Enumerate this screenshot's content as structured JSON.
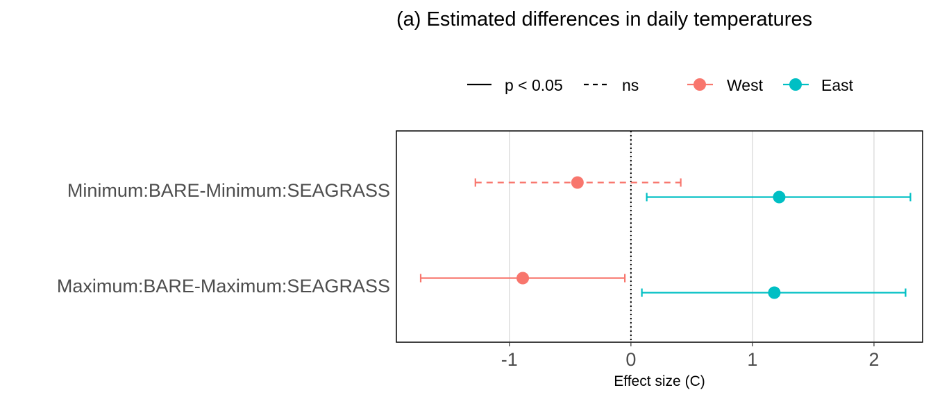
{
  "chart_data": {
    "type": "forest-plot",
    "title": "(a) Estimated differences in daily temperatures",
    "xlabel": "Effect size (C)",
    "ylabel": "",
    "xlim": [
      -1.93,
      2.4
    ],
    "x_ticks": [
      -1,
      0,
      1,
      2
    ],
    "x_tick_labels": [
      "-1",
      "0",
      "1",
      "2"
    ],
    "reference_line": {
      "x": 0,
      "style": "dotted"
    },
    "grid": "vertical major gridlines",
    "legend_position": "top",
    "legend": {
      "linetype": [
        {
          "label": "p < 0.05",
          "style": "solid"
        },
        {
          "label": "ns",
          "style": "dashed"
        }
      ],
      "color": [
        {
          "label": "West",
          "color": "#F8766D"
        },
        {
          "label": "East",
          "color": "#00BFC4"
        }
      ]
    },
    "categories": [
      "Minimum:BARE-Minimum:SEAGRASS",
      "Maximum:BARE-Maximum:SEAGRASS"
    ],
    "series": [
      {
        "name": "West",
        "color": "#F8766D",
        "points": [
          {
            "category": "Minimum:BARE-Minimum:SEAGRASS",
            "estimate": -0.44,
            "lower": -1.28,
            "upper": 0.41,
            "significance": "ns"
          },
          {
            "category": "Maximum:BARE-Maximum:SEAGRASS",
            "estimate": -0.89,
            "lower": -1.73,
            "upper": -0.05,
            "significance": "p < 0.05"
          }
        ]
      },
      {
        "name": "East",
        "color": "#00BFC4",
        "points": [
          {
            "category": "Minimum:BARE-Minimum:SEAGRASS",
            "estimate": 1.22,
            "lower": 0.13,
            "upper": 2.3,
            "significance": "p < 0.05"
          },
          {
            "category": "Maximum:BARE-Maximum:SEAGRASS",
            "estimate": 1.18,
            "lower": 0.09,
            "upper": 2.26,
            "significance": "p < 0.05"
          }
        ]
      }
    ]
  }
}
